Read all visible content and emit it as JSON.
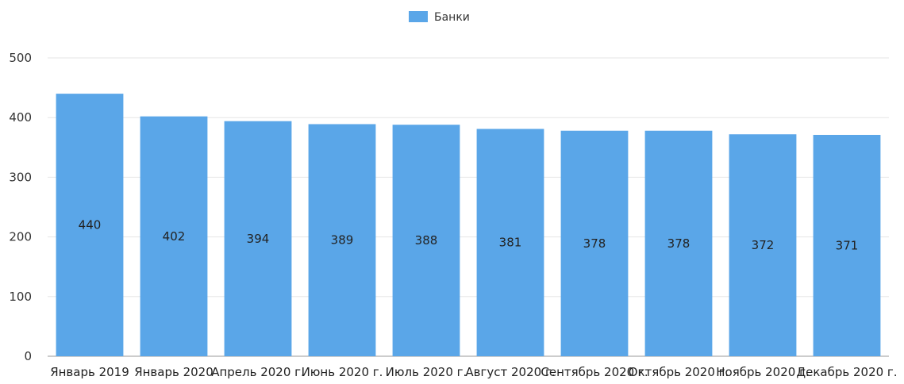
{
  "chart_data": {
    "type": "bar",
    "title": "",
    "xlabel": "",
    "ylabel": "",
    "categories": [
      "Январь 2019",
      "Январь 2020",
      "Апрель 2020 г.",
      "Июнь 2020 г.",
      "Июль 2020 г.",
      "Август 2020 г.",
      "Сентябрь 2020 г.",
      "Октябрь 2020 г.",
      "Ноябрь 2020 г.",
      "Декабрь 2020 г."
    ],
    "series": [
      {
        "name": "Банки",
        "values": [
          440,
          402,
          394,
          389,
          388,
          381,
          378,
          378,
          372,
          371
        ],
        "color": "#5aa6e8"
      }
    ],
    "ylim": [
      0,
      500
    ],
    "yticks": [
      0,
      100,
      200,
      300,
      400,
      500
    ],
    "grid": true,
    "gridColor": "#e6e6e6",
    "legend": "top-center",
    "data_labels": "inside-middle"
  }
}
